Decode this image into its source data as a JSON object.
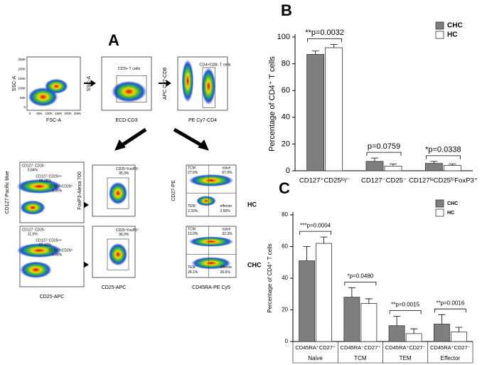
{
  "panel_a": {
    "label": "A",
    "plots": [
      {
        "y_label": "SSC-A",
        "x_label": "FSC-A",
        "x_ticks": [
          "0",
          "50K",
          "100K",
          "150K",
          "200K",
          "250K"
        ],
        "y_ticks": [
          "0",
          "50K",
          "100K",
          "150K",
          "200K",
          "250K"
        ]
      },
      {
        "y_label": "SSC-A",
        "x_label": "ECD-CD3",
        "gates": [
          {
            "label": "CD3+ T cells"
          }
        ]
      },
      {
        "y_label": "APC Cy7-CD8",
        "x_label": "PE Cy7-CD4",
        "gates": [
          {
            "label": "CD4+CD8- T cells"
          }
        ]
      },
      {
        "y_label": "CD127-Pacific blue",
        "gates": [
          {
            "label": "CD127⁻CD25⁻",
            "pct": "5.84%"
          },
          {
            "label": "CD127⁺CD25ˡᵒʷ",
            "pct": "82.28%"
          },
          {
            "label": "CD127ˡᵒCD25ʰⁱ",
            "pct": "3.35%"
          }
        ]
      },
      {
        "x_label": "CD25-APC",
        "gates": [
          {
            "label": "CD127⁻CD25⁻",
            "pct": "11.5%"
          },
          {
            "label": "CD127⁺CD25ˡᵒʷ",
            "pct": "82.43%"
          },
          {
            "label": "CD127ˡᵒCD25ʰⁱ",
            "pct": "6.08%"
          }
        ]
      },
      {
        "y_label": "FoxP3-Alexa 700",
        "gates": [
          {
            "label": "CD25⁺FoxP3⁺",
            "pct": "95.3%"
          }
        ]
      },
      {
        "x_label": "CD25-APC",
        "gates": [
          {
            "label": "CD25⁺FoxP3⁺",
            "pct": "96.9%"
          }
        ]
      },
      {
        "y_label": "CD27-PE",
        "gates": [
          {
            "label": "TCM",
            "pct": "27.6%"
          },
          {
            "label": "naive",
            "pct": "67.6%"
          },
          {
            "label": "TEM",
            "pct": "2.33%"
          },
          {
            "label": "effector",
            "pct": "2.50%"
          }
        ]
      },
      {
        "x_label": "CD45RA-PE Cy5",
        "gates": [
          {
            "label": "TCM",
            "pct": "13.0%"
          },
          {
            "label": "naive",
            "pct": "32.3%"
          },
          {
            "label": "TEM",
            "pct": "28.1%"
          },
          {
            "label": "effector",
            "pct": "26.6%"
          }
        ]
      }
    ],
    "row_labels": [
      "HC",
      "CHC"
    ]
  },
  "chart_data": [
    {
      "type": "bar",
      "panel": "B",
      "y_label": "Percentage of CD4⁺ T cells",
      "categories": [
        "CD127⁺CD25ˡᵒ/⁻",
        "CD127⁻CD25⁻",
        "CD127ˡᵒCD25ʰⁱFoxP3⁺"
      ],
      "series": [
        {
          "name": "CHC",
          "color": "#7f7f7f",
          "values": [
            87,
            7,
            5.5
          ],
          "errors": [
            2.5,
            2.5,
            1.5
          ]
        },
        {
          "name": "HC",
          "color": "#ffffff",
          "values": [
            92,
            3.5,
            4
          ],
          "errors": [
            2.5,
            1.5,
            1
          ]
        }
      ],
      "annotations": [
        "**p=0.0032",
        "p=0.0759",
        "*p=0.0338"
      ],
      "ylim": [
        0,
        100
      ],
      "yticks": [
        0,
        20,
        40,
        60,
        80,
        100
      ],
      "legend": "upper right"
    },
    {
      "type": "bar",
      "panel": "C",
      "y_label": "Percentage of CD4⁺ T cells",
      "categories": [
        "CD45RA⁺CD27⁺",
        "CD45RA⁻CD27⁺",
        "CD45RA⁺CD27⁻",
        "CD45RA⁺CD27⁻"
      ],
      "groups": [
        "Naive",
        "TCM",
        "TEM",
        "Effector"
      ],
      "series": [
        {
          "name": "CHC",
          "color": "#7f7f7f",
          "values": [
            51,
            28,
            10,
            11
          ],
          "errors": [
            9,
            6,
            6,
            6
          ]
        },
        {
          "name": "HC",
          "color": "#ffffff",
          "values": [
            62,
            24,
            5,
            6
          ],
          "errors": [
            4,
            3,
            3,
            3
          ]
        }
      ],
      "annotations": [
        "***p=0.0004",
        "*p=0.0480",
        "**p=0.0015",
        "**p=0.0016"
      ],
      "ylim": [
        0,
        80
      ],
      "yticks": [
        0,
        20,
        40,
        60,
        80
      ],
      "legend": "upper right"
    }
  ]
}
